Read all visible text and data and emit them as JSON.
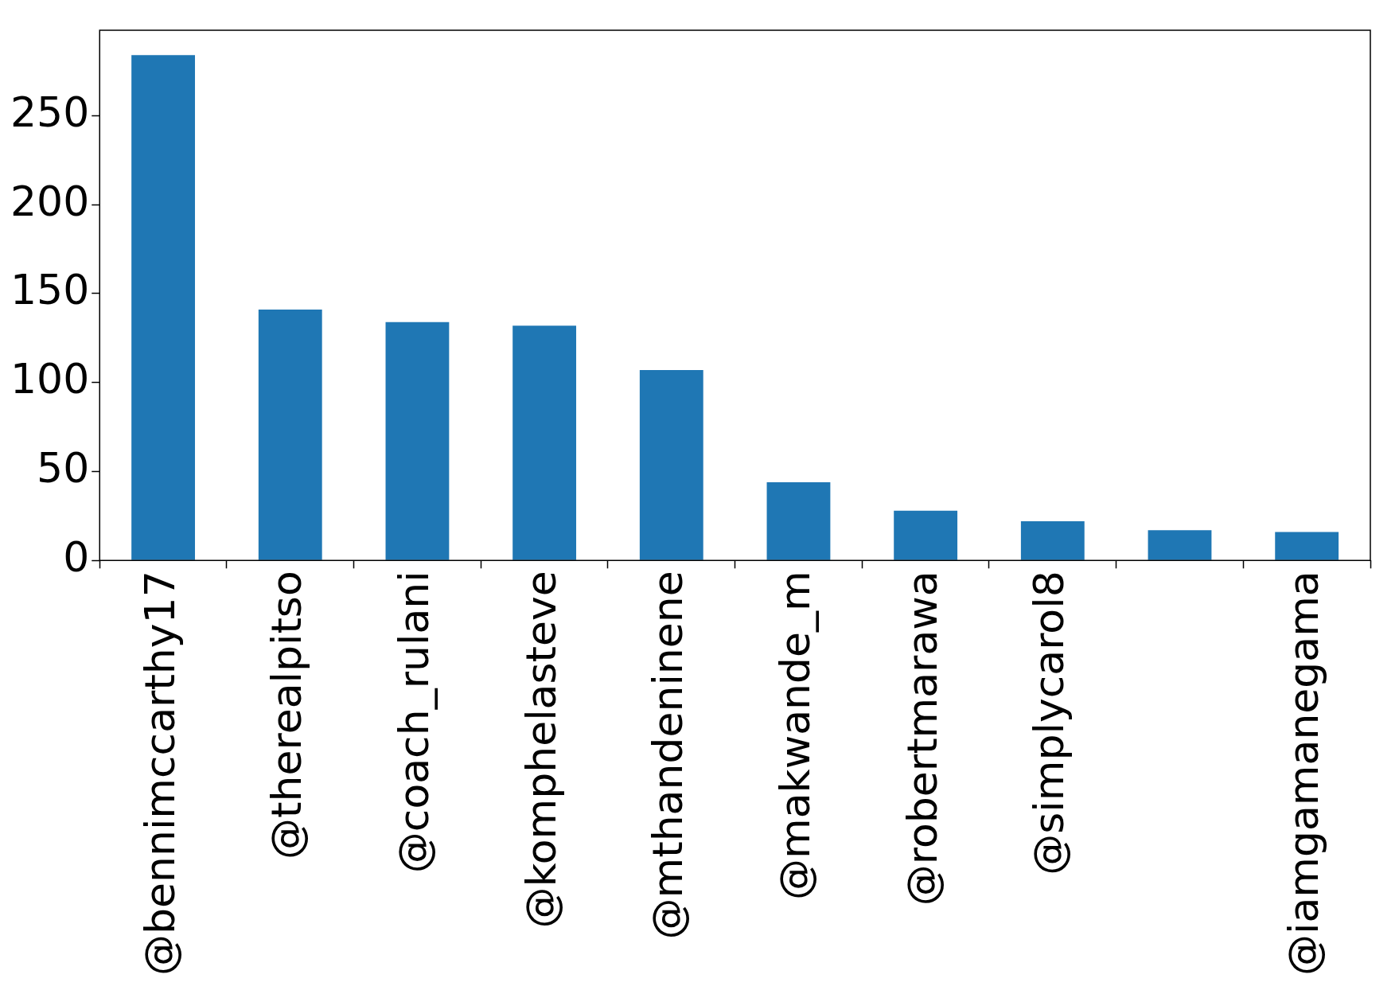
{
  "chart_data": {
    "type": "bar",
    "categories": [
      "@bennimccarthy17",
      "@therealpitso",
      "@coach_rulani",
      "@komphelasteve",
      "@mthandeninene",
      "@makwande_m",
      "@robertmarawa",
      "@simplycarol8",
      null,
      "@iamgamanegama"
    ],
    "values": [
      284,
      141,
      134,
      132,
      107,
      44,
      28,
      22,
      17,
      16
    ],
    "color": "#1f77b4",
    "ylim": [
      0,
      298
    ],
    "yticks": [
      0,
      50,
      100,
      150,
      200,
      250
    ],
    "grid": false,
    "legend": false
  }
}
